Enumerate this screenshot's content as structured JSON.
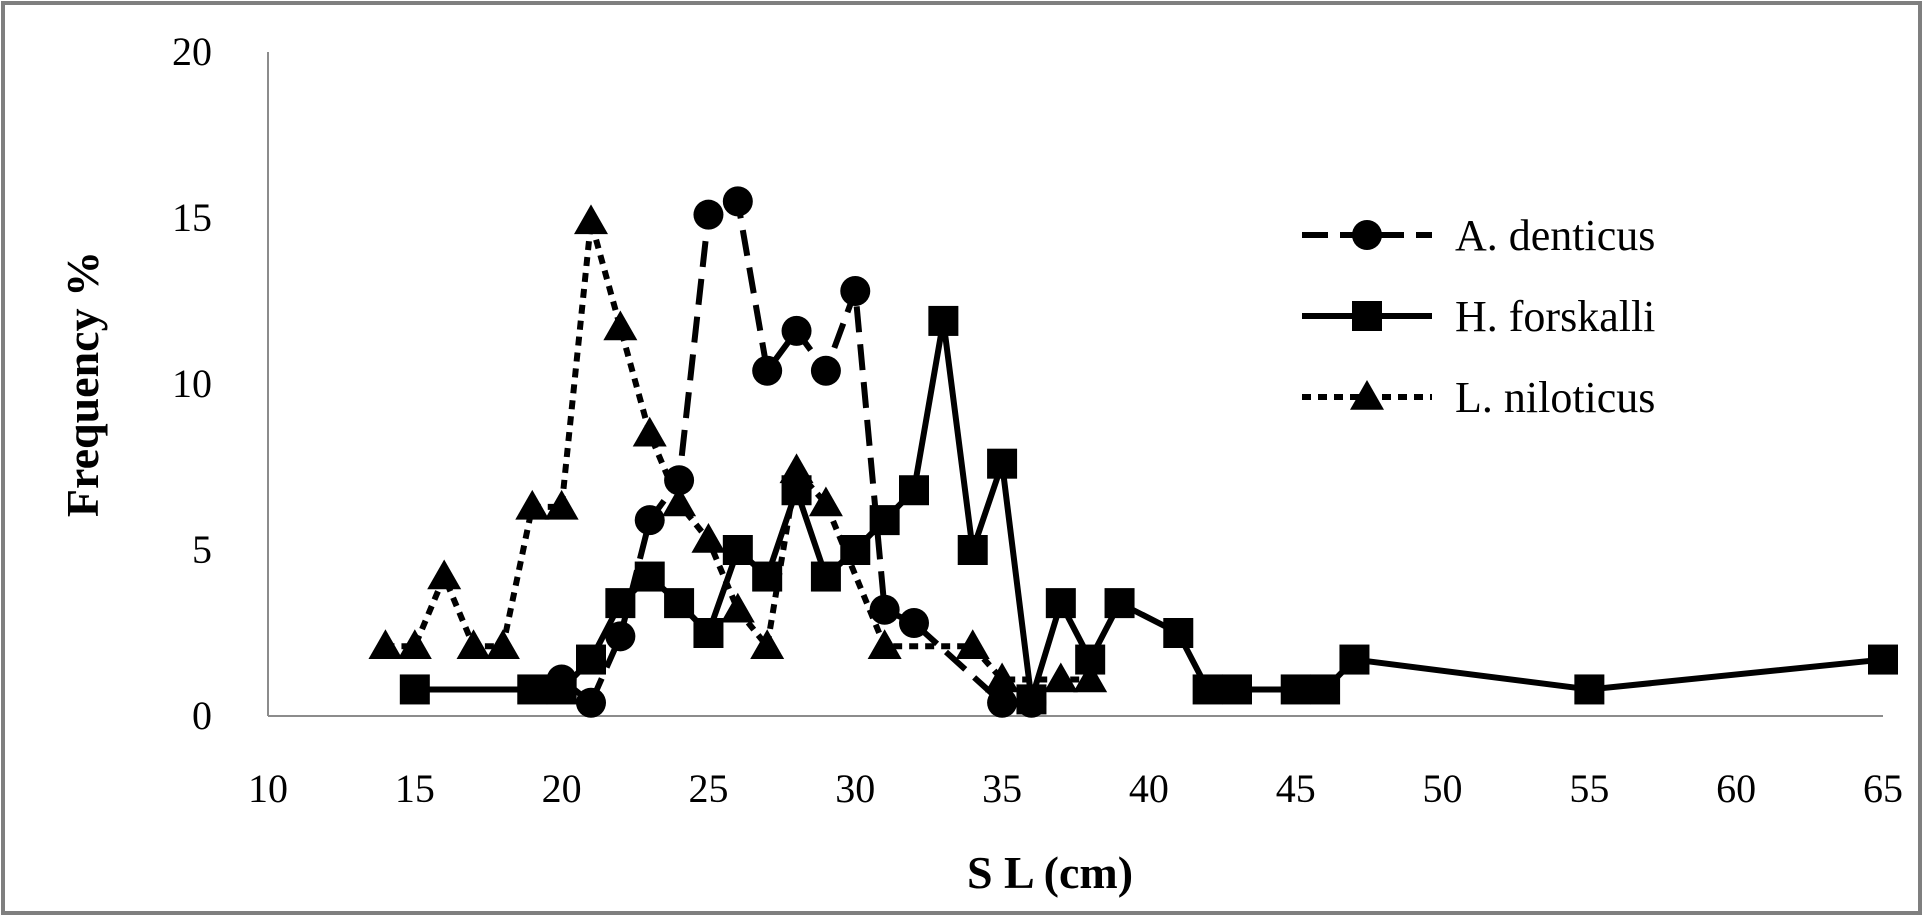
{
  "chart_data": {
    "type": "line",
    "xlabel": "S L (cm)",
    "ylabel": "Frequency %",
    "xlim": [
      10,
      65
    ],
    "ylim": [
      0,
      20
    ],
    "xticks": [
      10,
      15,
      20,
      25,
      30,
      35,
      40,
      45,
      50,
      55,
      60,
      65
    ],
    "yticks": [
      0,
      5,
      10,
      15,
      20
    ],
    "grid": false,
    "legend_position": "right",
    "series": [
      {
        "name": "A. denticus",
        "marker": "circle",
        "line_style": "long-dash",
        "color": "#000000",
        "x": [
          20,
          21,
          22,
          23,
          24,
          25,
          26,
          27,
          28,
          29,
          30,
          31,
          32,
          35,
          36
        ],
        "y": [
          1.1,
          0.4,
          2.4,
          5.9,
          7.1,
          15.1,
          15.5,
          10.4,
          11.6,
          10.4,
          12.8,
          3.2,
          2.8,
          0.4,
          0.4
        ]
      },
      {
        "name": "H. forskalli",
        "marker": "square",
        "line_style": "solid",
        "color": "#000000",
        "x": [
          15,
          19,
          20,
          21,
          22,
          23,
          24,
          25,
          26,
          27,
          28,
          29,
          30,
          31,
          32,
          33,
          34,
          35,
          36,
          37,
          38,
          39,
          41,
          42,
          43,
          45,
          46,
          47,
          55,
          65
        ],
        "y": [
          0.8,
          0.8,
          0.8,
          1.7,
          3.4,
          4.2,
          3.4,
          2.5,
          5.0,
          4.2,
          6.8,
          4.2,
          5.0,
          5.9,
          6.8,
          11.9,
          5.0,
          7.6,
          0.5,
          3.4,
          1.7,
          3.4,
          2.5,
          0.8,
          0.8,
          0.8,
          0.8,
          1.7,
          0.8,
          1.7
        ]
      },
      {
        "name": "L. niloticus",
        "marker": "triangle",
        "line_style": "short-dash",
        "color": "#000000",
        "x": [
          14,
          15,
          16,
          17,
          18,
          19,
          20,
          21,
          22,
          23,
          24,
          25,
          26,
          27,
          28,
          29,
          31,
          34,
          35,
          37,
          38
        ],
        "y": [
          2.1,
          2.1,
          4.2,
          2.1,
          2.1,
          6.3,
          6.3,
          14.9,
          11.7,
          8.5,
          6.4,
          5.3,
          3.2,
          2.1,
          7.4,
          6.4,
          2.1,
          2.1,
          1.1,
          1.1,
          1.1
        ]
      }
    ]
  }
}
